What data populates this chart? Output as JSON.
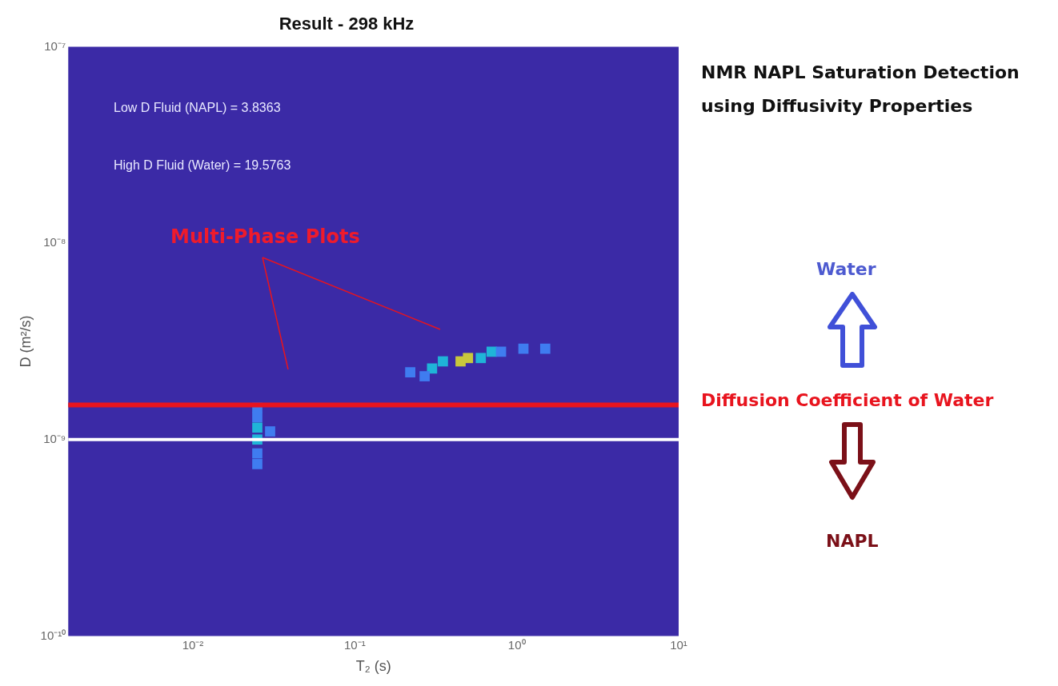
{
  "chart_data": {
    "type": "scatter",
    "title": "Result - 298 kHz",
    "xlabel": "T₂ (s)",
    "ylabel": "D (m²/s)",
    "log": "xy",
    "grid": false,
    "legend": false,
    "marker": "square",
    "xlim": [
      0.0017,
      10
    ],
    "xticks": [
      {
        "value": 0.01,
        "label": "10⁻²"
      },
      {
        "value": 0.1,
        "label": "10⁻¹"
      },
      {
        "value": 1,
        "label": "10⁰"
      },
      {
        "value": 10,
        "label": "10¹"
      }
    ],
    "ylim": [
      1e-10,
      1e-07
    ],
    "yticks": [
      {
        "value": 1e-10,
        "label": "10⁻¹⁰"
      },
      {
        "value": 1e-09,
        "label": "10⁻⁹"
      },
      {
        "value": 1e-08,
        "label": "10⁻⁸"
      },
      {
        "value": 1e-07,
        "label": "10⁻⁷"
      }
    ],
    "series": [
      {
        "color": "#3f7cf0",
        "x": [
          0.025,
          0.025,
          0.025,
          0.025,
          0.03,
          0.22,
          0.27,
          0.8,
          1.1,
          1.5
        ],
        "values": [
          7.5e-10,
          8.5e-10,
          1.3e-09,
          1.45e-09,
          1.1e-09,
          2.2e-09,
          2.1e-09,
          2.8e-09,
          2.9e-09,
          2.9e-09
        ]
      },
      {
        "color": "#1fb4d8",
        "x": [
          0.025,
          0.025,
          0.3,
          0.35,
          0.6,
          0.7
        ],
        "values": [
          1e-09,
          1.15e-09,
          2.3e-09,
          2.5e-09,
          2.6e-09,
          2.8e-09
        ]
      },
      {
        "color": "#c8c83c",
        "x": [
          0.45,
          0.5
        ],
        "values": [
          2.5e-09,
          2.6e-09
        ]
      }
    ],
    "ref_lines": [
      {
        "axis": "y",
        "value": 1.5e-09,
        "label": "Diffusion Coefficient of Water",
        "color": "#e8141e"
      },
      {
        "axis": "y",
        "value": 1e-09,
        "color": "#ffffff"
      }
    ],
    "annotations": [
      "Low D Fluid (NAPL) = 3.8363",
      "High D Fluid (Water) = 19.5763",
      "Multi-Phase Plots",
      "NMR NAPL Saturation Detection using Diffusivity Properties",
      "Water",
      "NAPL"
    ]
  }
}
